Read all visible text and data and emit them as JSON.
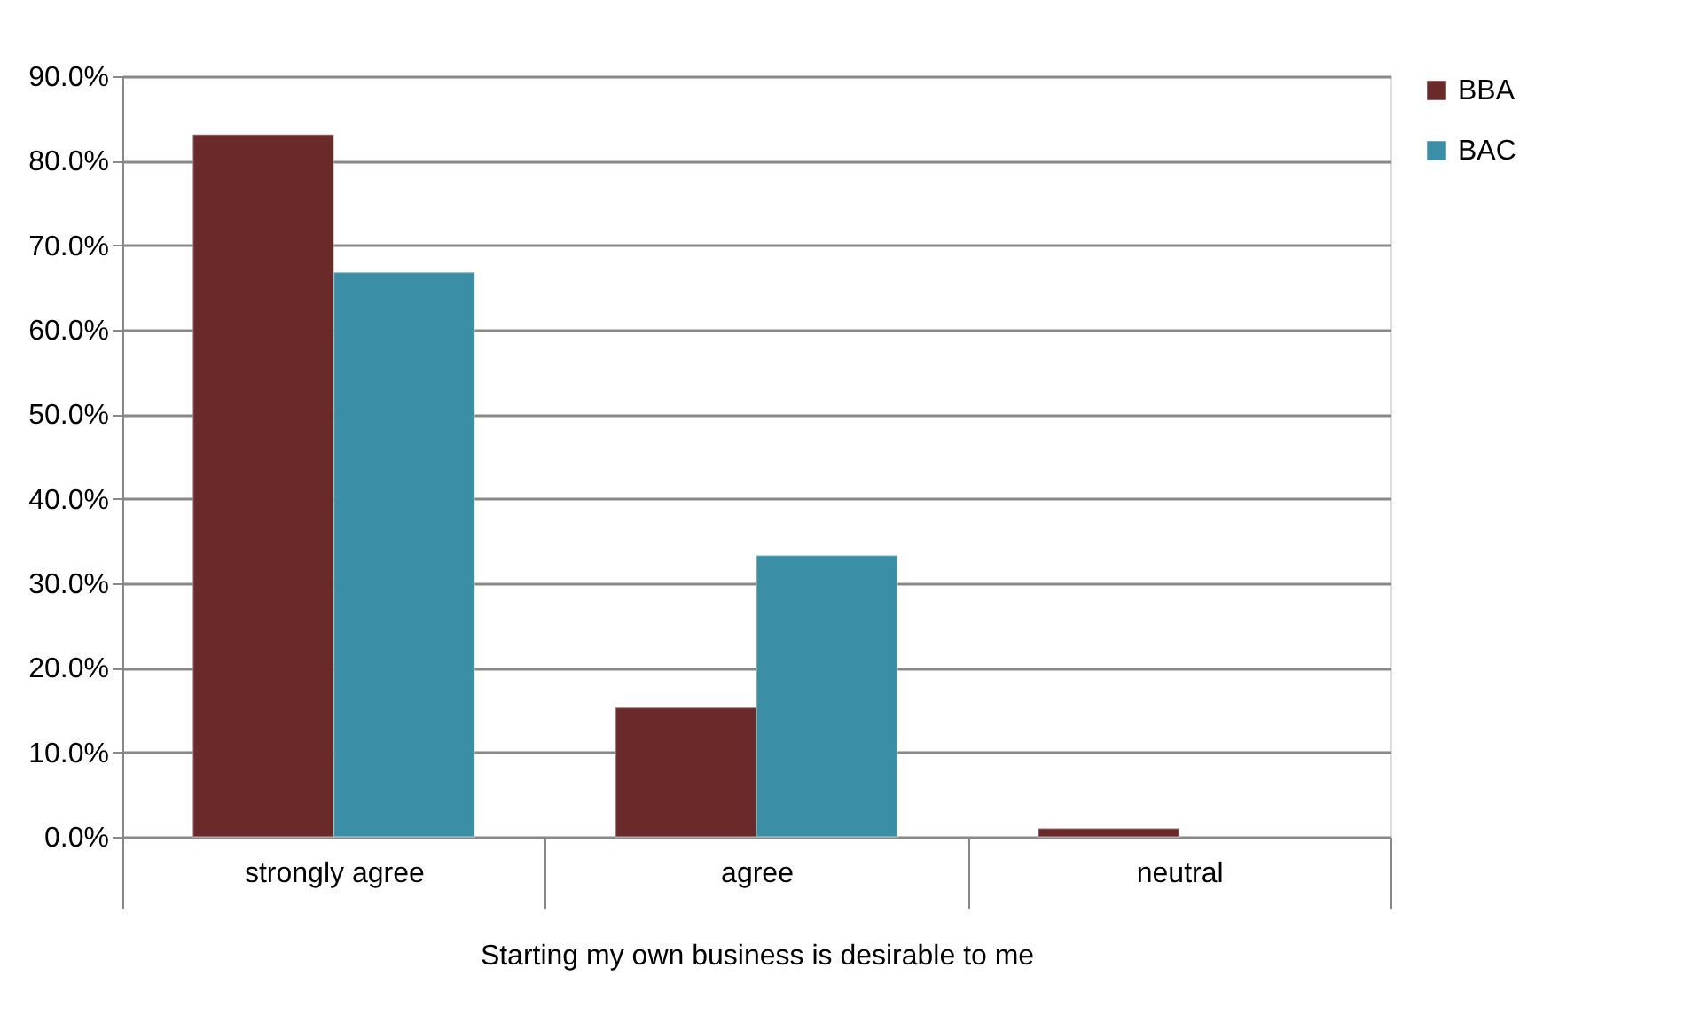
{
  "chart_data": {
    "type": "bar",
    "xlabel": "Starting my own business is desirable to me",
    "categories": [
      "strongly agree",
      "agree",
      "neutral"
    ],
    "series": [
      {
        "name": "BBA",
        "color": "#6b2a2a",
        "values": [
          83.1,
          15.3,
          1.0
        ]
      },
      {
        "name": "BAC",
        "color": "#3a8ea5",
        "values": [
          66.8,
          33.3,
          null
        ]
      }
    ],
    "ylim": [
      0,
      90
    ],
    "yticks": [
      {
        "value": 0,
        "label": "0.0%"
      },
      {
        "value": 10,
        "label": "10.0%"
      },
      {
        "value": 20,
        "label": "20.0%"
      },
      {
        "value": 30,
        "label": "30.0%"
      },
      {
        "value": 40,
        "label": "40.0%"
      },
      {
        "value": 50,
        "label": "50.0%"
      },
      {
        "value": 60,
        "label": "60.0%"
      },
      {
        "value": 70,
        "label": "70.0%"
      },
      {
        "value": 80,
        "label": "80.0%"
      },
      {
        "value": 90,
        "label": "90.0%"
      }
    ],
    "grid": "y",
    "legend": "right"
  }
}
